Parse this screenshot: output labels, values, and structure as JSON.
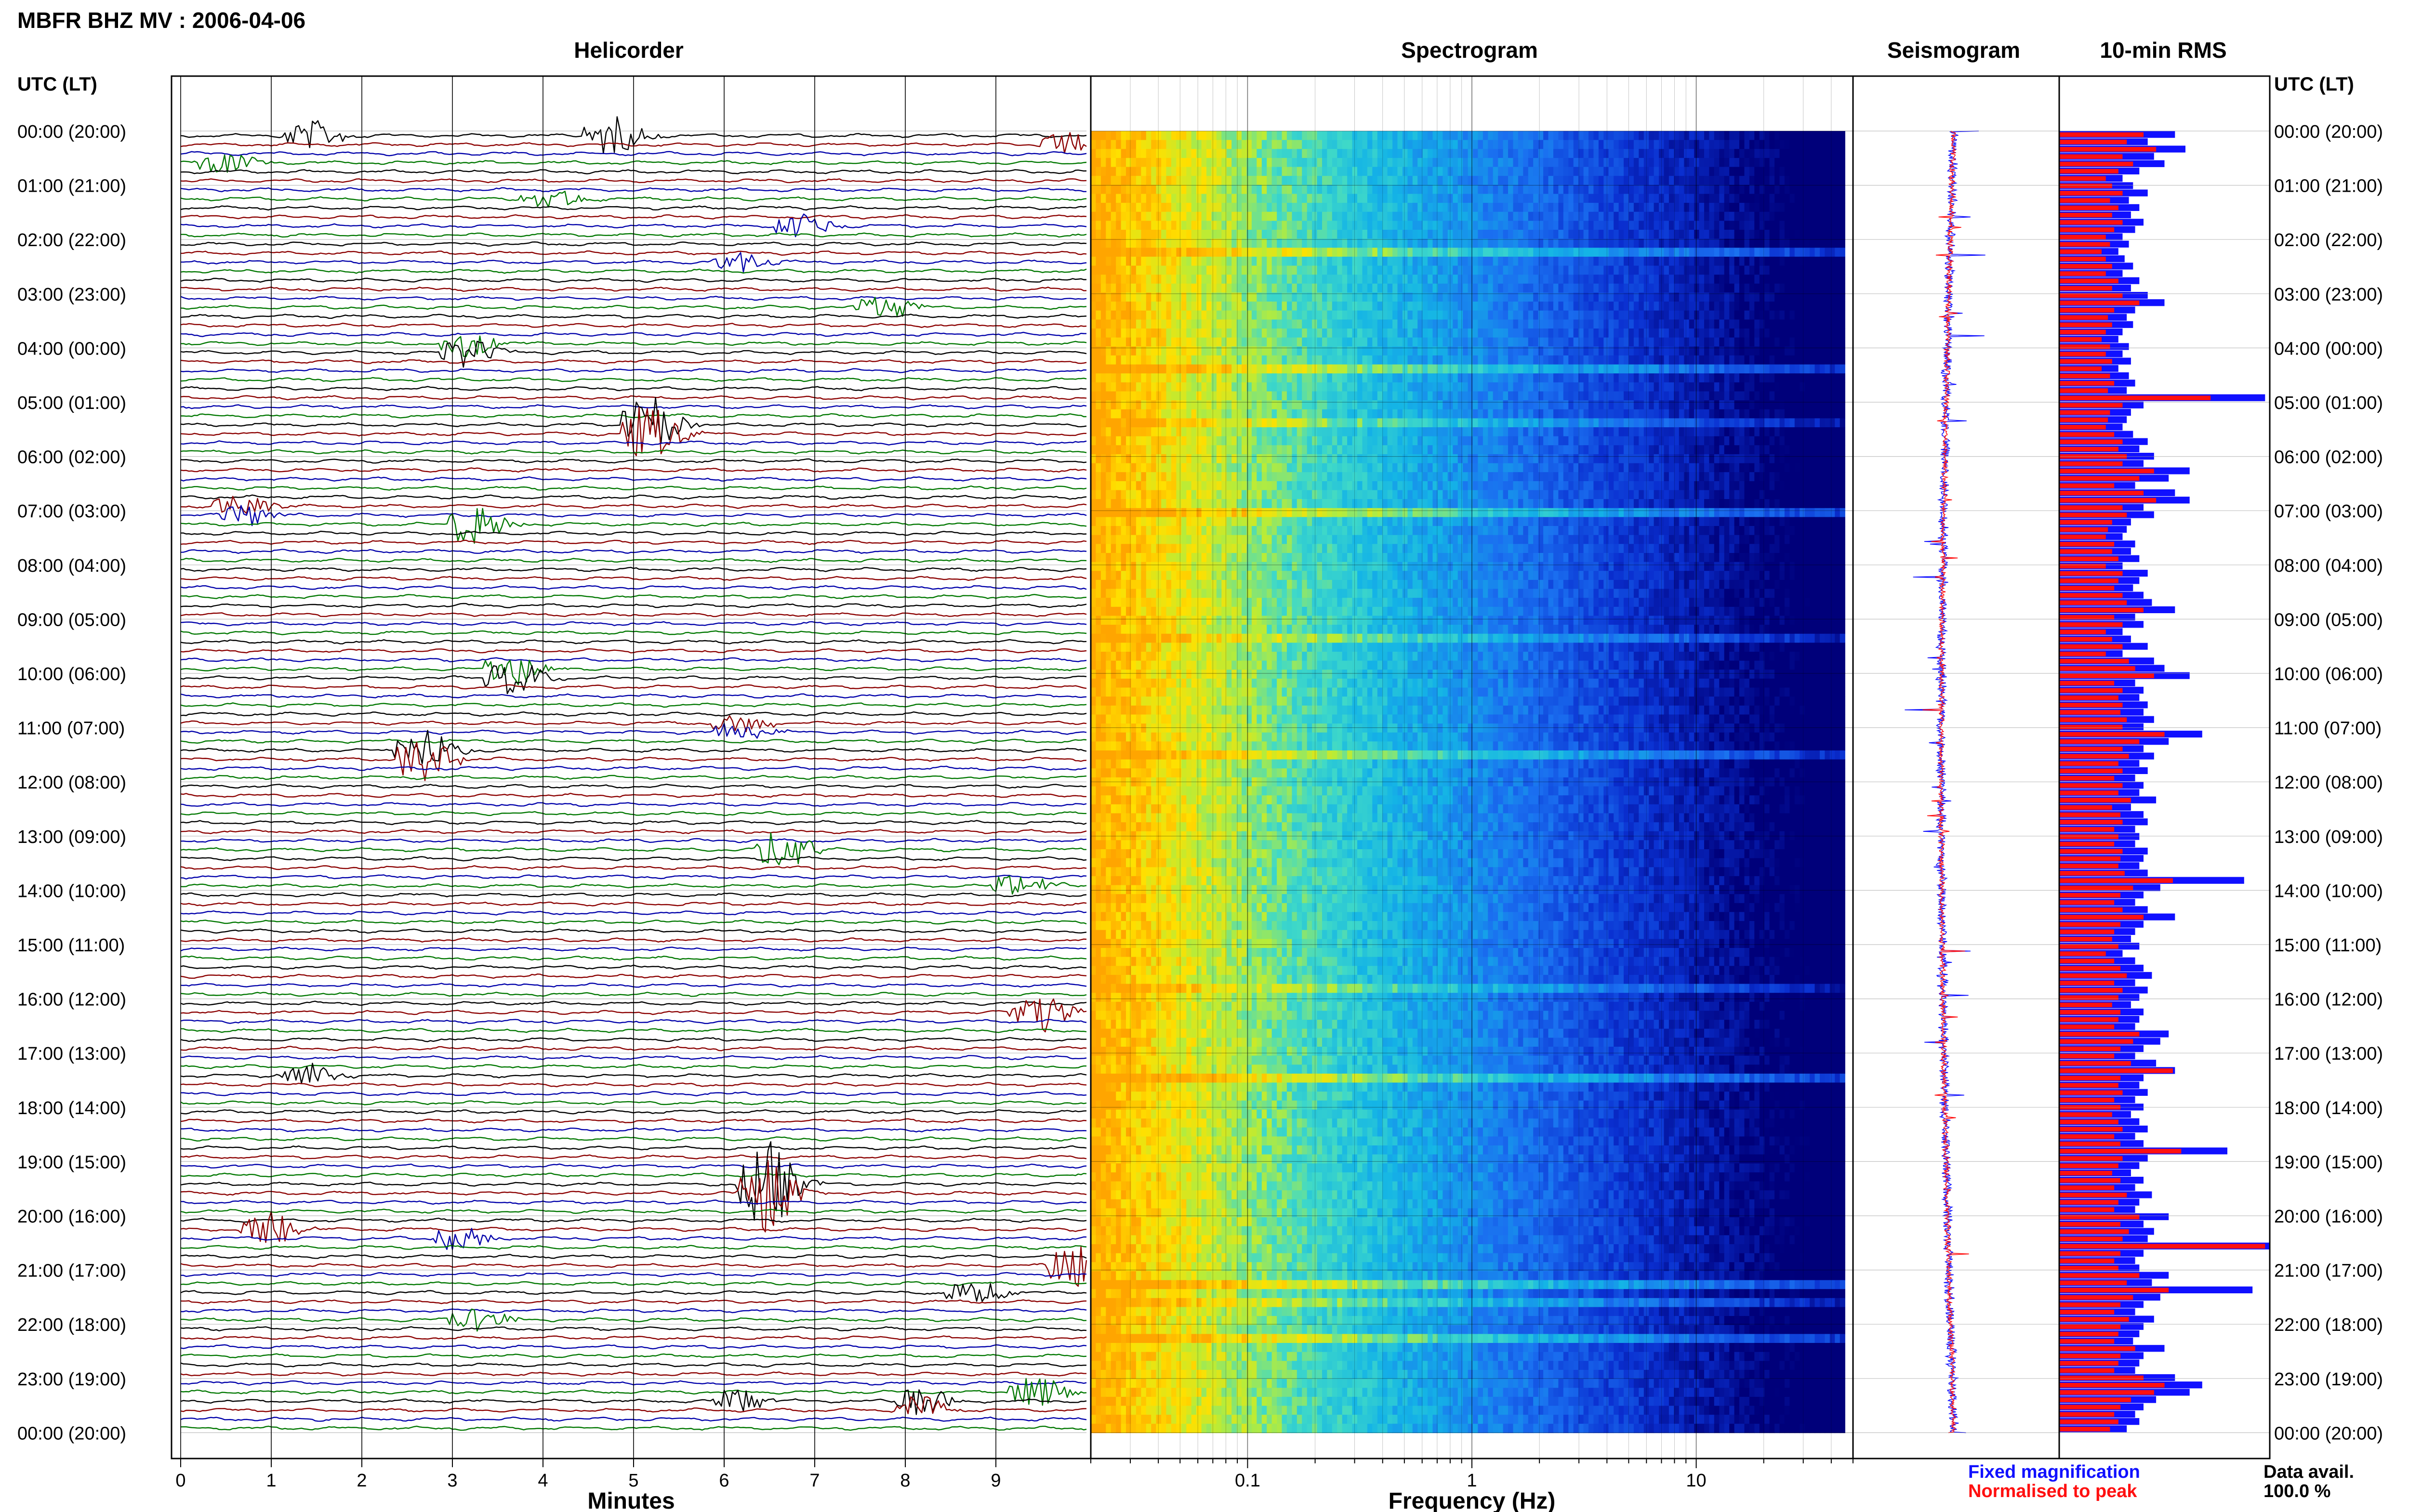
{
  "header": {
    "title": "MBFR BHZ MV : 2006-04-06",
    "utc_label_left": "UTC (LT)",
    "utc_label_right": "UTC (LT)"
  },
  "panels": {
    "helicorder": "Helicorder",
    "spectrogram": "Spectrogram",
    "seismogram": "Seismogram",
    "rms": "10-min RMS"
  },
  "axes": {
    "minutes_label": "Minutes",
    "frequency_label": "Frequency (Hz)"
  },
  "legend": {
    "fixed": "Fixed magnification",
    "fixed_color": "#1010ff",
    "normalised": "Normalised to peak",
    "normalised_color": "#ff1010"
  },
  "availability": {
    "label": "Data avail.",
    "value": "100.0 %"
  },
  "chart_data": {
    "type": "helicorder",
    "time_labels": [
      "00:00 (20:00)",
      "01:00 (21:00)",
      "02:00 (22:00)",
      "03:00 (23:00)",
      "04:00 (00:00)",
      "05:00 (01:00)",
      "06:00 (02:00)",
      "07:00 (03:00)",
      "08:00 (04:00)",
      "09:00 (05:00)",
      "10:00 (06:00)",
      "11:00 (07:00)",
      "12:00 (08:00)",
      "13:00 (09:00)",
      "14:00 (10:00)",
      "15:00 (11:00)",
      "16:00 (12:00)",
      "17:00 (13:00)",
      "18:00 (14:00)",
      "19:00 (15:00)",
      "20:00 (16:00)",
      "21:00 (17:00)",
      "22:00 (18:00)",
      "23:00 (19:00)",
      "00:00 (20:00)"
    ],
    "helicorder": {
      "xlim": [
        0,
        10
      ],
      "ticks": [
        "0",
        "1",
        "2",
        "3",
        "4",
        "5",
        "6",
        "7",
        "8",
        "9"
      ],
      "trace_colors": [
        "#000000",
        "#8b0000",
        "#0000aa",
        "#007700"
      ],
      "events": [
        {
          "hour": 0.0,
          "minute": 1.3,
          "amp": 0.7
        },
        {
          "hour": 0.15,
          "minute": 4.6,
          "amp": 1.0
        },
        {
          "hour": 0.3,
          "minute": 9.6,
          "amp": 0.6
        },
        {
          "hour": 0.6,
          "minute": 0.3,
          "amp": 0.5
        },
        {
          "hour": 1.3,
          "minute": 3.9,
          "amp": 0.5
        },
        {
          "hour": 1.8,
          "minute": 6.7,
          "amp": 0.6
        },
        {
          "hour": 2.4,
          "minute": 6.0,
          "amp": 0.5
        },
        {
          "hour": 3.3,
          "minute": 7.6,
          "amp": 0.6
        },
        {
          "hour": 4.0,
          "minute": 3.0,
          "amp": 0.7
        },
        {
          "hour": 5.5,
          "minute": 5.0,
          "amp": 1.4
        },
        {
          "hour": 7.3,
          "minute": 3.1,
          "amp": 1.0
        },
        {
          "hour": 7.0,
          "minute": 0.5,
          "amp": 0.6
        },
        {
          "hour": 10.0,
          "minute": 3.5,
          "amp": 0.9
        },
        {
          "hour": 11.5,
          "minute": 2.5,
          "amp": 1.1
        },
        {
          "hour": 11.0,
          "minute": 6.0,
          "amp": 0.5
        },
        {
          "hour": 13.3,
          "minute": 6.5,
          "amp": 1.0
        },
        {
          "hour": 13.9,
          "minute": 9.1,
          "amp": 0.6
        },
        {
          "hour": 16.3,
          "minute": 9.3,
          "amp": 1.0
        },
        {
          "hour": 17.4,
          "minute": 1.2,
          "amp": 0.7
        },
        {
          "hour": 19.5,
          "minute": 6.3,
          "amp": 2.2
        },
        {
          "hour": 20.3,
          "minute": 0.8,
          "amp": 0.9
        },
        {
          "hour": 20.4,
          "minute": 2.9,
          "amp": 0.6
        },
        {
          "hour": 20.9,
          "minute": 9.7,
          "amp": 1.1
        },
        {
          "hour": 21.4,
          "minute": 8.6,
          "amp": 0.6
        },
        {
          "hour": 21.9,
          "minute": 3.1,
          "amp": 0.6
        },
        {
          "hour": 23.3,
          "minute": 9.3,
          "amp": 0.8
        },
        {
          "hour": 23.5,
          "minute": 8.0,
          "amp": 0.7
        },
        {
          "hour": 23.4,
          "minute": 6.0,
          "amp": 0.6
        }
      ]
    },
    "spectrogram": {
      "x_scale": "log",
      "xlim": [
        0.02,
        50
      ],
      "ticks": [
        {
          "value": 0.1,
          "label": "0.1"
        },
        {
          "value": 1,
          "label": "1"
        },
        {
          "value": 10,
          "label": "10"
        }
      ],
      "color_low": "#00007a",
      "color_mid": "#14b4e6",
      "color_high": "#ffa500"
    },
    "rms": {
      "bins_per_hour": 6,
      "fixed_magnification": [
        0.55,
        0.42,
        0.6,
        0.45,
        0.5,
        0.38,
        0.3,
        0.35,
        0.42,
        0.33,
        0.38,
        0.34,
        0.4,
        0.36,
        0.3,
        0.33,
        0.28,
        0.31,
        0.35,
        0.3,
        0.38,
        0.34,
        0.42,
        0.5,
        0.36,
        0.32,
        0.35,
        0.3,
        0.28,
        0.33,
        0.3,
        0.34,
        0.28,
        0.33,
        0.36,
        0.32,
        0.98,
        0.4,
        0.34,
        0.32,
        0.3,
        0.35,
        0.42,
        0.38,
        0.45,
        0.4,
        0.62,
        0.52,
        0.36,
        0.55,
        0.62,
        0.4,
        0.45,
        0.34,
        0.32,
        0.3,
        0.36,
        0.34,
        0.38,
        0.3,
        0.42,
        0.38,
        0.35,
        0.4,
        0.44,
        0.55,
        0.36,
        0.4,
        0.3,
        0.34,
        0.42,
        0.3,
        0.45,
        0.5,
        0.62,
        0.36,
        0.4,
        0.38,
        0.42,
        0.4,
        0.45,
        0.4,
        0.68,
        0.52,
        0.4,
        0.45,
        0.38,
        0.42,
        0.36,
        0.4,
        0.38,
        0.46,
        0.34,
        0.4,
        0.42,
        0.36,
        0.38,
        0.36,
        0.42,
        0.4,
        0.38,
        0.42,
        0.88,
        0.48,
        0.4,
        0.36,
        0.42,
        0.55,
        0.4,
        0.36,
        0.34,
        0.38,
        0.3,
        0.36,
        0.4,
        0.44,
        0.36,
        0.42,
        0.38,
        0.34,
        0.4,
        0.38,
        0.36,
        0.52,
        0.48,
        0.4,
        0.36,
        0.46,
        0.55,
        0.4,
        0.38,
        0.42,
        0.36,
        0.4,
        0.34,
        0.38,
        0.42,
        0.36,
        0.4,
        0.8,
        0.42,
        0.38,
        0.34,
        0.4,
        0.36,
        0.44,
        0.38,
        0.36,
        0.52,
        0.4,
        0.45,
        0.42,
        1.0,
        0.4,
        0.36,
        0.38,
        0.52,
        0.44,
        0.92,
        0.48,
        0.4,
        0.36,
        0.45,
        0.4,
        0.38,
        0.35,
        0.5,
        0.4,
        0.38,
        0.36,
        0.55,
        0.68,
        0.62,
        0.46,
        0.4,
        0.36,
        0.38,
        0.32
      ],
      "normalised_to_peak": [
        0.4,
        0.32,
        0.46,
        0.3,
        0.35,
        0.28,
        0.22,
        0.25,
        0.3,
        0.24,
        0.28,
        0.25,
        0.3,
        0.26,
        0.22,
        0.24,
        0.2,
        0.22,
        0.25,
        0.22,
        0.28,
        0.25,
        0.3,
        0.38,
        0.26,
        0.23,
        0.25,
        0.22,
        0.2,
        0.24,
        0.22,
        0.25,
        0.2,
        0.24,
        0.26,
        0.23,
        0.72,
        0.3,
        0.24,
        0.23,
        0.22,
        0.26,
        0.3,
        0.28,
        0.32,
        0.3,
        0.45,
        0.38,
        0.26,
        0.4,
        0.46,
        0.3,
        0.32,
        0.25,
        0.23,
        0.22,
        0.26,
        0.25,
        0.28,
        0.22,
        0.3,
        0.28,
        0.26,
        0.3,
        0.32,
        0.4,
        0.26,
        0.3,
        0.22,
        0.25,
        0.3,
        0.22,
        0.33,
        0.36,
        0.45,
        0.26,
        0.3,
        0.28,
        0.3,
        0.29,
        0.32,
        0.3,
        0.5,
        0.38,
        0.3,
        0.33,
        0.28,
        0.3,
        0.26,
        0.3,
        0.28,
        0.34,
        0.25,
        0.29,
        0.3,
        0.26,
        0.28,
        0.26,
        0.3,
        0.29,
        0.28,
        0.31,
        0.54,
        0.35,
        0.29,
        0.26,
        0.3,
        0.4,
        0.29,
        0.26,
        0.25,
        0.28,
        0.22,
        0.26,
        0.29,
        0.32,
        0.26,
        0.3,
        0.28,
        0.25,
        0.29,
        0.28,
        0.26,
        0.38,
        0.35,
        0.29,
        0.26,
        0.34,
        0.54,
        0.29,
        0.28,
        0.3,
        0.26,
        0.29,
        0.25,
        0.28,
        0.3,
        0.26,
        0.29,
        0.58,
        0.3,
        0.28,
        0.25,
        0.29,
        0.26,
        0.32,
        0.28,
        0.26,
        0.38,
        0.29,
        0.33,
        0.3,
        0.98,
        0.29,
        0.26,
        0.28,
        0.38,
        0.32,
        0.52,
        0.35,
        0.29,
        0.26,
        0.33,
        0.29,
        0.28,
        0.26,
        0.36,
        0.29,
        0.28,
        0.26,
        0.4,
        0.5,
        0.45,
        0.34,
        0.29,
        0.26,
        0.28,
        0.24
      ]
    }
  }
}
